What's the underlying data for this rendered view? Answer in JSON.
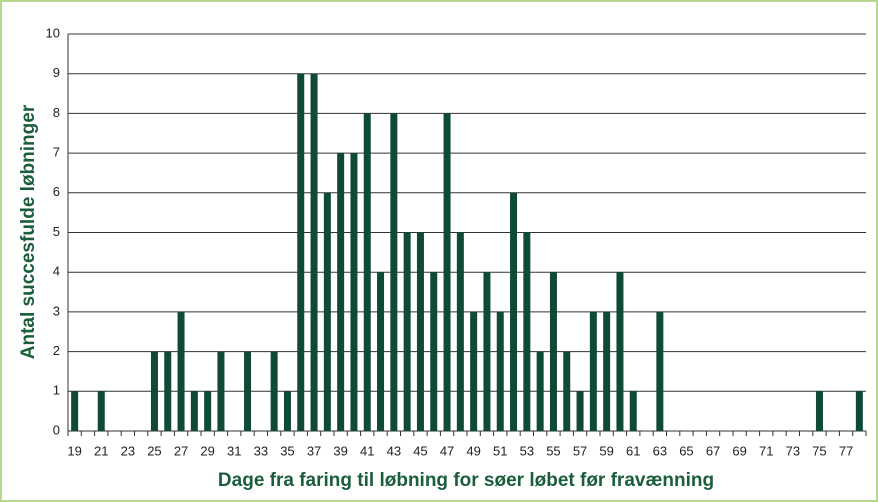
{
  "chart_data": {
    "type": "bar",
    "xlabel": "Dage fra faring til løbning for søer løbet før fravænning",
    "ylabel": "Antal succesfulde løbninger",
    "categories": [
      "19",
      null,
      "21",
      null,
      "23",
      null,
      "25",
      null,
      "27",
      null,
      "29",
      null,
      "31",
      null,
      "33",
      null,
      "35",
      null,
      "37",
      null,
      "39",
      null,
      "41",
      null,
      "43",
      null,
      "45",
      null,
      "47",
      null,
      "49",
      null,
      "51",
      null,
      "53",
      null,
      "55",
      null,
      "57",
      null,
      "59",
      null,
      "61",
      null,
      "63",
      null,
      "65",
      null,
      "67",
      null,
      "69",
      null,
      "71",
      null,
      "73",
      null,
      "75",
      null,
      "77",
      null
    ],
    "values": [
      1,
      0,
      1,
      0,
      0,
      0,
      2,
      2,
      3,
      1,
      1,
      2,
      0,
      2,
      0,
      2,
      1,
      9,
      9,
      6,
      7,
      7,
      8,
      4,
      8,
      5,
      5,
      4,
      8,
      5,
      3,
      4,
      3,
      6,
      5,
      2,
      4,
      2,
      1,
      3,
      3,
      4,
      1,
      0,
      3,
      0,
      0,
      0,
      0,
      0,
      0,
      0,
      0,
      0,
      0,
      0,
      1,
      0,
      0,
      1
    ],
    "color": "#0e4a34",
    "ylim": [
      0,
      10
    ],
    "yticks": [
      0,
      1,
      2,
      3,
      4,
      5,
      6,
      7,
      8,
      9,
      10
    ],
    "grid": true
  }
}
